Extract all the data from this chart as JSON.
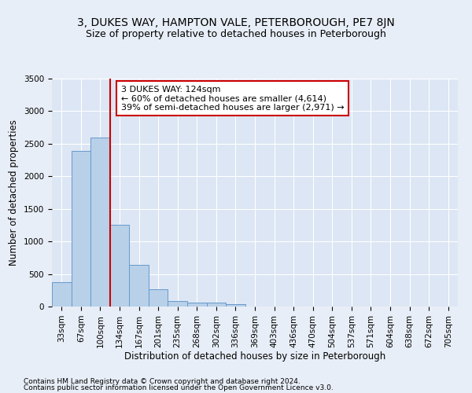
{
  "title": "3, DUKES WAY, HAMPTON VALE, PETERBOROUGH, PE7 8JN",
  "subtitle": "Size of property relative to detached houses in Peterborough",
  "xlabel": "Distribution of detached houses by size in Peterborough",
  "ylabel": "Number of detached properties",
  "footnote1": "Contains HM Land Registry data © Crown copyright and database right 2024.",
  "footnote2": "Contains public sector information licensed under the Open Government Licence v3.0.",
  "bar_labels": [
    "33sqm",
    "67sqm",
    "100sqm",
    "134sqm",
    "167sqm",
    "201sqm",
    "235sqm",
    "268sqm",
    "302sqm",
    "336sqm",
    "369sqm",
    "403sqm",
    "436sqm",
    "470sqm",
    "504sqm",
    "537sqm",
    "571sqm",
    "604sqm",
    "638sqm",
    "672sqm",
    "705sqm"
  ],
  "bar_values": [
    380,
    2390,
    2600,
    1250,
    640,
    260,
    90,
    60,
    55,
    40,
    0,
    0,
    0,
    0,
    0,
    0,
    0,
    0,
    0,
    0,
    0
  ],
  "bar_color": "#b8d0e8",
  "bar_edge_color": "#6699cc",
  "vline_color": "#cc0000",
  "vline_pos": 2.5,
  "annotation_line1": "3 DUKES WAY: 124sqm",
  "annotation_line2": "← 60% of detached houses are smaller (4,614)",
  "annotation_line3": "39% of semi-detached houses are larger (2,971) →",
  "annotation_box_color": "#ffffff",
  "annotation_box_edge_color": "#cc0000",
  "ylim": [
    0,
    3500
  ],
  "yticks": [
    0,
    500,
    1000,
    1500,
    2000,
    2500,
    3000,
    3500
  ],
  "bg_color": "#e8eef7",
  "plot_bg_color": "#dce6f4",
  "grid_color": "#ffffff",
  "title_fontsize": 10,
  "subtitle_fontsize": 9,
  "axis_label_fontsize": 8.5,
  "tick_fontsize": 7.5,
  "annotation_fontsize": 8,
  "footnote_fontsize": 6.5
}
